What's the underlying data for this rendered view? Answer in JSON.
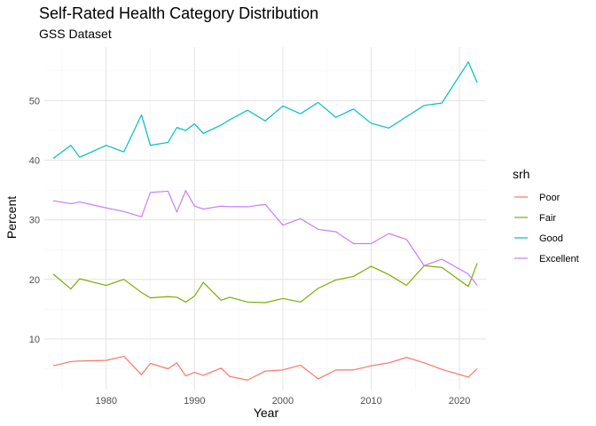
{
  "chart_data": {
    "type": "line",
    "title": "Self-Rated Health Category Distribution",
    "subtitle": "GSS Dataset",
    "xlabel": "Year",
    "ylabel": "Percent",
    "xlim": [
      1973,
      2023
    ],
    "ylim": [
      1.5,
      59
    ],
    "x_ticks": [
      1980,
      1990,
      2000,
      2010,
      2020
    ],
    "y_ticks": [
      10,
      20,
      30,
      40,
      50
    ],
    "grid": true,
    "legend_title": "srh",
    "legend_position": "right",
    "x": [
      1974,
      1976,
      1977,
      1980,
      1982,
      1984,
      1985,
      1987,
      1988,
      1989,
      1990,
      1991,
      1993,
      1994,
      1996,
      1998,
      2000,
      2002,
      2004,
      2006,
      2008,
      2010,
      2012,
      2014,
      2016,
      2018,
      2021,
      2022
    ],
    "series": [
      {
        "name": "Poor",
        "color": "#F8766D",
        "values": [
          5.5,
          6.2,
          6.3,
          6.4,
          7.1,
          4.0,
          5.9,
          5.0,
          6.0,
          3.8,
          4.4,
          3.9,
          5.1,
          3.7,
          3.1,
          4.6,
          4.8,
          5.6,
          3.3,
          4.8,
          4.8,
          5.5,
          6.0,
          6.9,
          6.0,
          4.9,
          3.6,
          5.0
        ]
      },
      {
        "name": "Fair",
        "color": "#7CAE00",
        "values": [
          20.9,
          18.4,
          20.1,
          19.0,
          20.0,
          17.8,
          16.9,
          17.1,
          17.0,
          16.2,
          17.2,
          19.5,
          16.5,
          17.0,
          16.2,
          16.1,
          16.8,
          16.2,
          18.5,
          19.9,
          20.5,
          22.2,
          20.8,
          19.0,
          22.3,
          22.0,
          18.8,
          22.7
        ]
      },
      {
        "name": "Good",
        "color": "#00BFC4",
        "values": [
          40.3,
          42.5,
          40.5,
          42.5,
          41.4,
          47.6,
          42.5,
          43.0,
          45.5,
          45.0,
          46.1,
          44.5,
          45.9,
          46.8,
          48.4,
          46.6,
          49.1,
          47.8,
          49.7,
          47.2,
          48.6,
          46.2,
          45.4,
          47.3,
          49.2,
          49.6,
          56.5,
          53.0
        ]
      },
      {
        "name": "Excellent",
        "color": "#C77CFF",
        "values": [
          33.2,
          32.7,
          33.0,
          32.0,
          31.4,
          30.5,
          34.6,
          34.8,
          31.3,
          34.9,
          32.3,
          31.8,
          32.3,
          32.2,
          32.2,
          32.6,
          29.1,
          30.2,
          28.4,
          28.0,
          26.0,
          26.0,
          27.7,
          26.7,
          22.3,
          23.4,
          20.9,
          19.0
        ]
      }
    ]
  }
}
